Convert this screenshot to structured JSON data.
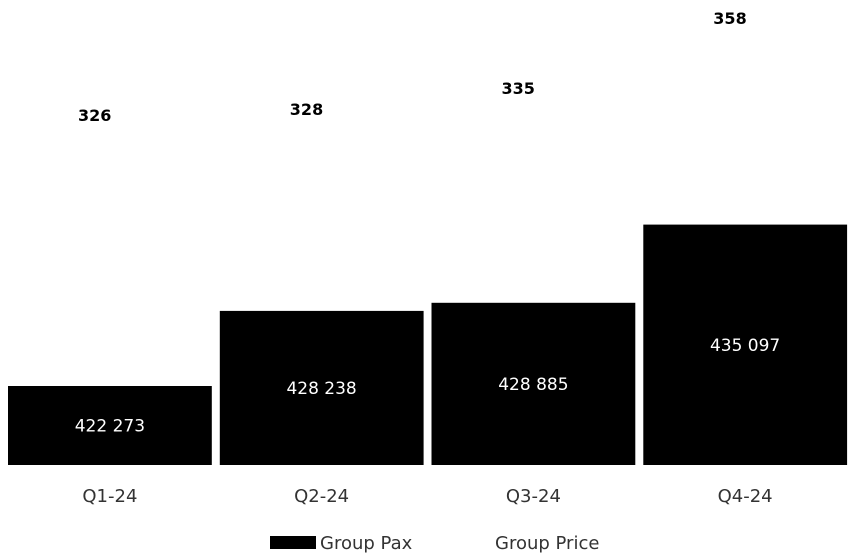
{
  "chart_data": {
    "type": "bar",
    "categories": [
      "Q1-24",
      "Q2-24",
      "Q3-24",
      "Q4-24"
    ],
    "series": [
      {
        "name": "Group Pax",
        "type": "bar",
        "values": [
          422273,
          428238,
          428885,
          435097
        ],
        "labels": [
          "422 273",
          "428 238",
          "428 885",
          "435 097"
        ],
        "color": "#000000"
      },
      {
        "name": "Group Price",
        "type": "line",
        "values": [
          326,
          328,
          335,
          358
        ],
        "labels": [
          "326",
          "328",
          "335",
          "358"
        ],
        "color": "#ffffff"
      }
    ],
    "bar_axis_range": [
      416000,
      438000
    ],
    "price_axis_range": [
      300,
      360
    ],
    "grid": false,
    "legend_position": "bottom-center",
    "title": "",
    "xlabel": "",
    "ylabel": ""
  }
}
